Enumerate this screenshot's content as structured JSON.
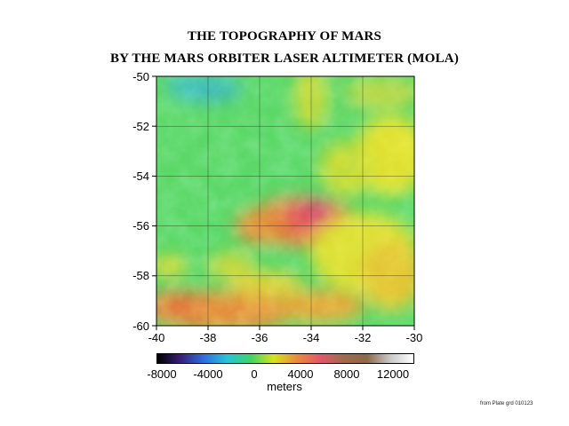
{
  "title_line1": "THE TOPOGRAPHY OF MARS",
  "title_line2": "BY THE MARS ORBITER LASER ALTIMETER (MOLA)",
  "map": {
    "type": "topographic_map",
    "x_ticks": [
      "-40",
      "-38",
      "-36",
      "-34",
      "-32",
      "-30"
    ],
    "y_ticks": [
      "-50",
      "-52",
      "-54",
      "-56",
      "-58",
      "-60"
    ],
    "xlim": [
      -40,
      -30
    ],
    "ylim": [
      -60,
      -50
    ],
    "grid": true
  },
  "colorbar": {
    "tick_labels": [
      "-8000",
      "-4000",
      "0",
      "4000",
      "8000",
      "12000"
    ],
    "unit_label": "meters",
    "colors": [
      "#000000",
      "#3a1f7a",
      "#2f6fe0",
      "#29c3d8",
      "#3fd36a",
      "#d8e21e",
      "#e98a3d",
      "#e2576b",
      "#a06a4d",
      "#8c6a4a",
      "#c8c8c8",
      "#ffffff"
    ]
  },
  "credit": "from Plate grd 010123"
}
